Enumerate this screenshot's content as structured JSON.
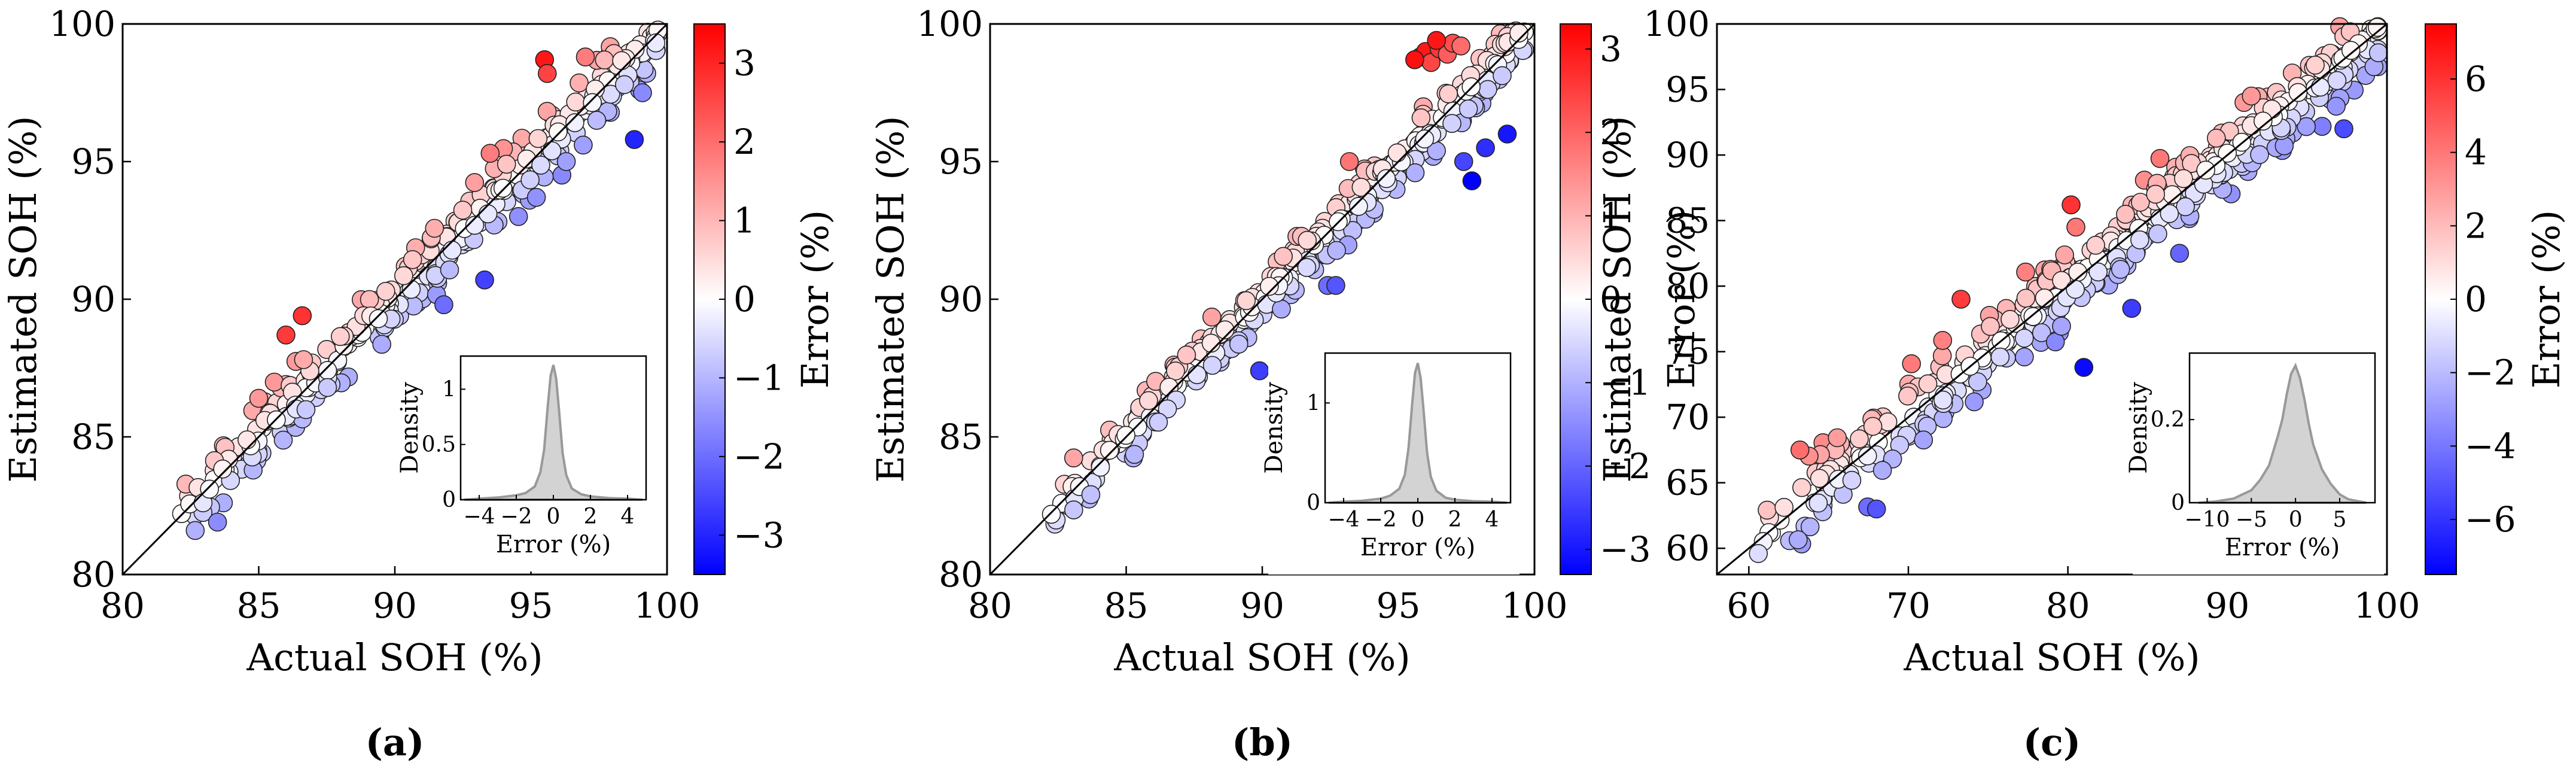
{
  "figure": {
    "panels": [
      "a",
      "b",
      "c"
    ]
  },
  "colors": {
    "negative": "#0000ff",
    "neutral": "#ffffff",
    "positive": "#ff0000",
    "density_fill": "#d3d3d3",
    "density_line": "#999999",
    "axis": "#000000"
  },
  "chart_data": [
    {
      "type": "scatter",
      "panel_label": "(a)",
      "xlabel": "Actual SOH (%)",
      "ylabel": "Estimated SOH (%)",
      "xlim": [
        80,
        100
      ],
      "ylim": [
        80,
        100
      ],
      "xticks": [
        80,
        85,
        90,
        95,
        100
      ],
      "yticks": [
        80,
        85,
        90,
        95,
        100
      ],
      "colorbar": {
        "label": "Error (%)",
        "min": -3.5,
        "max": 3.5,
        "ticks": [
          -3,
          -2,
          -1,
          0,
          1,
          2,
          3
        ]
      },
      "trend": {
        "spread": 0.6,
        "seed": 11,
        "count": 360
      },
      "outliers": [
        {
          "x": 86.0,
          "y": 88.7
        },
        {
          "x": 86.6,
          "y": 89.4
        },
        {
          "x": 85.0,
          "y": 86.4
        },
        {
          "x": 93.5,
          "y": 95.3
        },
        {
          "x": 95.5,
          "y": 98.7
        },
        {
          "x": 95.6,
          "y": 98.2
        },
        {
          "x": 97.0,
          "y": 98.8
        },
        {
          "x": 98.8,
          "y": 95.8
        },
        {
          "x": 95.2,
          "y": 93.7
        },
        {
          "x": 96.3,
          "y": 95.0
        },
        {
          "x": 93.3,
          "y": 90.7
        },
        {
          "x": 91.8,
          "y": 89.8
        },
        {
          "x": 99.1,
          "y": 97.5
        }
      ],
      "inset": {
        "xlabel": "Error (%)",
        "ylabel": "Density",
        "xlim": [
          -5,
          5
        ],
        "ylim": [
          0,
          1.3
        ],
        "xticks": [
          -4,
          -2,
          0,
          2,
          4
        ],
        "yticks": [
          0,
          0.5,
          1
        ],
        "ytick_labels": [
          "0",
          "0.5",
          "1"
        ],
        "density": {
          "x": [
            -4.8,
            -4,
            -3,
            -2,
            -1.5,
            -1,
            -0.7,
            -0.5,
            -0.3,
            -0.15,
            0,
            0.15,
            0.3,
            0.5,
            0.7,
            1,
            1.5,
            2,
            3,
            4,
            4.8
          ],
          "y": [
            0,
            0.01,
            0.02,
            0.04,
            0.06,
            0.12,
            0.25,
            0.45,
            0.85,
            1.12,
            1.22,
            1.1,
            0.82,
            0.42,
            0.22,
            0.1,
            0.05,
            0.03,
            0.015,
            0.01,
            0
          ]
        }
      }
    },
    {
      "type": "scatter",
      "panel_label": "(b)",
      "xlabel": "Actual SOH (%)",
      "ylabel": "Estimated SOH (%)",
      "xlim": [
        80,
        100
      ],
      "ylim": [
        80,
        100
      ],
      "xticks": [
        80,
        85,
        90,
        95,
        100
      ],
      "yticks": [
        80,
        85,
        90,
        95,
        100
      ],
      "colorbar": {
        "label": "Error (%)",
        "min": -3.3,
        "max": 3.3,
        "ticks": [
          -3,
          -2,
          -1,
          0,
          1,
          2,
          3
        ]
      },
      "trend": {
        "spread": 0.5,
        "seed": 23,
        "count": 360
      },
      "outliers": [
        {
          "x": 95.8,
          "y": 98.8
        },
        {
          "x": 96.0,
          "y": 99.0
        },
        {
          "x": 96.2,
          "y": 98.6
        },
        {
          "x": 96.5,
          "y": 99.1
        },
        {
          "x": 96.8,
          "y": 98.9
        },
        {
          "x": 97.0,
          "y": 99.3
        },
        {
          "x": 97.3,
          "y": 99.2
        },
        {
          "x": 95.6,
          "y": 98.7
        },
        {
          "x": 96.4,
          "y": 99.4
        },
        {
          "x": 93.2,
          "y": 95.0
        },
        {
          "x": 89.9,
          "y": 87.4
        },
        {
          "x": 92.4,
          "y": 90.5
        },
        {
          "x": 92.7,
          "y": 90.5
        },
        {
          "x": 97.7,
          "y": 94.3
        },
        {
          "x": 97.4,
          "y": 95.0
        },
        {
          "x": 99.0,
          "y": 96.0
        },
        {
          "x": 98.2,
          "y": 95.5
        },
        {
          "x": 83.7,
          "y": 82.9
        }
      ],
      "inset": {
        "xlabel": "Error (%)",
        "ylabel": "Density",
        "xlim": [
          -5,
          5
        ],
        "ylim": [
          0,
          1.5
        ],
        "xticks": [
          -4,
          -2,
          0,
          2,
          4
        ],
        "yticks": [
          0,
          1
        ],
        "ytick_labels": [
          "0",
          "1"
        ],
        "density": {
          "x": [
            -4.8,
            -4,
            -3,
            -2,
            -1.5,
            -1,
            -0.7,
            -0.5,
            -0.3,
            -0.15,
            0,
            0.15,
            0.3,
            0.5,
            0.7,
            1,
            1.5,
            2,
            3,
            4,
            4.8
          ],
          "y": [
            0,
            0.01,
            0.02,
            0.04,
            0.07,
            0.14,
            0.28,
            0.55,
            1.0,
            1.3,
            1.4,
            1.25,
            0.95,
            0.5,
            0.26,
            0.12,
            0.05,
            0.03,
            0.015,
            0.01,
            0
          ]
        }
      }
    },
    {
      "type": "scatter",
      "panel_label": "(c)",
      "xlabel": "Actual SOH (%)",
      "ylabel": "Estimated SOH (%)",
      "xlim": [
        58,
        100
      ],
      "ylim": [
        58,
        100
      ],
      "xticks": [
        60,
        70,
        80,
        90,
        100
      ],
      "yticks": [
        60,
        65,
        70,
        75,
        80,
        85,
        90,
        95,
        100
      ],
      "colorbar": {
        "label": "Error (%)",
        "min": -7.5,
        "max": 7.5,
        "ticks": [
          -6,
          -4,
          -2,
          0,
          2,
          4,
          6
        ]
      },
      "trend": {
        "spread": 1.5,
        "seed": 37,
        "count": 480
      },
      "outliers": [
        {
          "x": 80.2,
          "y": 86.2
        },
        {
          "x": 80.5,
          "y": 84.5
        },
        {
          "x": 73.3,
          "y": 79.0
        },
        {
          "x": 91.5,
          "y": 94.5
        },
        {
          "x": 63.2,
          "y": 67.5
        },
        {
          "x": 81.0,
          "y": 73.8
        },
        {
          "x": 84.0,
          "y": 78.3
        },
        {
          "x": 87.0,
          "y": 82.5
        },
        {
          "x": 68.0,
          "y": 63.0
        },
        {
          "x": 97.3,
          "y": 92.0
        }
      ],
      "inset": {
        "xlabel": "Error (%)",
        "ylabel": "Density",
        "xlim": [
          -12,
          9
        ],
        "ylim": [
          0,
          0.36
        ],
        "xticks": [
          -10,
          -5,
          0,
          5
        ],
        "yticks": [
          0,
          0.2
        ],
        "ytick_labels": [
          "0",
          "0.2"
        ],
        "density": {
          "x": [
            -11,
            -9,
            -7,
            -5,
            -4,
            -3,
            -2,
            -1.5,
            -1,
            -0.5,
            0,
            0.5,
            1,
            1.5,
            2,
            3,
            4,
            5,
            6,
            8
          ],
          "y": [
            0,
            0.003,
            0.01,
            0.03,
            0.055,
            0.09,
            0.16,
            0.2,
            0.26,
            0.31,
            0.33,
            0.3,
            0.25,
            0.19,
            0.14,
            0.08,
            0.045,
            0.02,
            0.008,
            0
          ]
        }
      }
    }
  ]
}
